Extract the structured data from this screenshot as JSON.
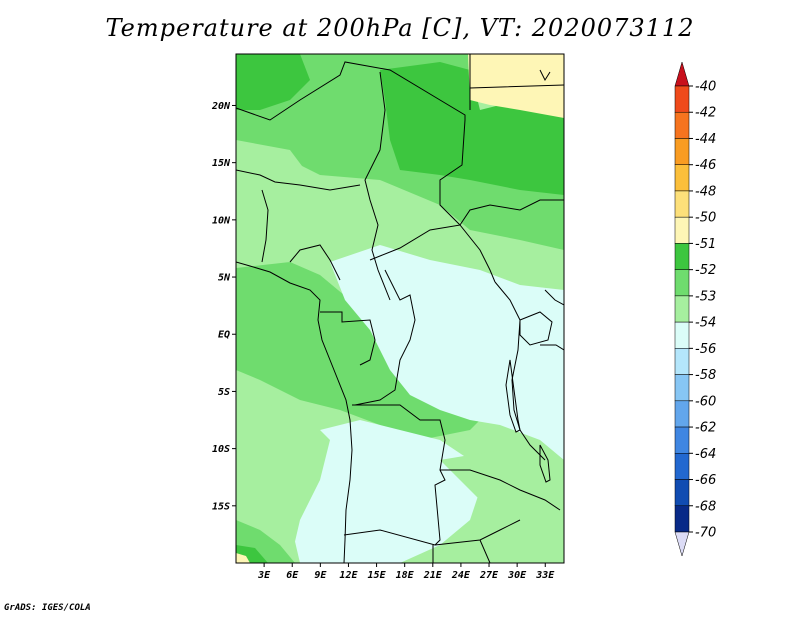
{
  "title": "Temperature at 200hPa [C], VT: 2020073112",
  "credit": "GrADS: IGES/COLA",
  "map": {
    "lat_labels": [
      "20N",
      "15N",
      "10N",
      "5N",
      "EQ",
      "5S",
      "10S",
      "15S"
    ],
    "lon_labels": [
      "3E",
      "6E",
      "9E",
      "12E",
      "15E",
      "18E",
      "21E",
      "24E",
      "27E",
      "30E",
      "33E"
    ],
    "lon_range": [
      0,
      35
    ],
    "lat_range": [
      -20,
      24.5
    ]
  },
  "colorbar": {
    "levels": [
      "-40",
      "-42",
      "-44",
      "-46",
      "-48",
      "-50",
      "-51",
      "-52",
      "-53",
      "-54",
      "-56",
      "-58",
      "-60",
      "-62",
      "-64",
      "-66",
      "-68",
      "-70"
    ],
    "colors": [
      "#d7281c",
      "#ef4a1b",
      "#f6741f",
      "#f99c22",
      "#fbbf3b",
      "#fde07a",
      "#fef6b6",
      "#3dc63f",
      "#6fdc6e",
      "#a6ef9f",
      "#dbfdf8",
      "#b4e6fb",
      "#87c6f4",
      "#62a6ec",
      "#3f86e2",
      "#2268d0",
      "#104cb2",
      "#082a88",
      "#020a50",
      "#dcdcf6"
    ],
    "tip_top_color": "#c8101c",
    "tip_bottom_color": "#dcdcf6"
  },
  "legend_colors": {
    "coastline": "#000000",
    "frame": "#000000"
  }
}
